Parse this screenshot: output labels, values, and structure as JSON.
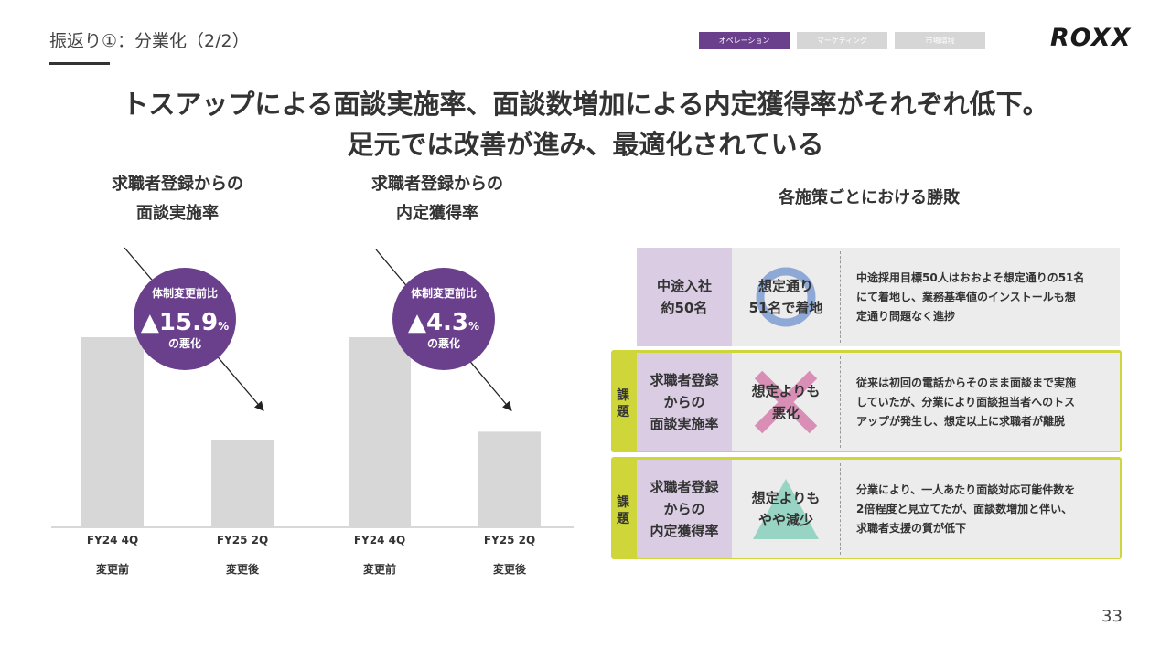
{
  "header": {
    "title": "振返り①：分業化（2/2）",
    "logo": "ROXX",
    "tabs": [
      {
        "label": "オペレーション",
        "active": true
      },
      {
        "label": "マーケティング",
        "active": false
      },
      {
        "label": "市場環境",
        "active": false
      }
    ]
  },
  "headline": {
    "line1": "トスアップによる面談実施率、面談数増加による内定獲得率がそれぞれ低下。",
    "line2": "足元では改善が進み、最適化されている"
  },
  "chart_data": [
    {
      "type": "bar",
      "title_line1": "求職者登録からの",
      "title_line2": "面談実施率",
      "categories": [
        "FY24 4Q",
        "FY25 2Q"
      ],
      "sublabels": [
        "変更前",
        "変更後"
      ],
      "values": [
        100,
        45.9
      ],
      "ylim": [
        0,
        100
      ],
      "badge": {
        "line1": "体制変更前比",
        "value": "▲15.9",
        "unit": "%",
        "line3": "の悪化"
      },
      "bar_color": "#d7d7d7"
    },
    {
      "type": "bar",
      "title_line1": "求職者登録からの",
      "title_line2": "内定獲得率",
      "categories": [
        "FY24 4Q",
        "FY25 2Q"
      ],
      "sublabels": [
        "変更前",
        "変更後"
      ],
      "values": [
        100,
        50.3
      ],
      "ylim": [
        0,
        100
      ],
      "badge": {
        "line1": "体制変更前比",
        "value": "▲4.3",
        "unit": "%",
        "line3": "の悪化"
      },
      "bar_color": "#d7d7d7"
    }
  ],
  "results": {
    "title": "各施策ごとにおける勝敗",
    "kadai_label": "課題",
    "rows": [
      {
        "name_line1": "中途入社",
        "name_line2": "約50名",
        "name_line3": "",
        "result_line1": "想定通り",
        "result_line2": "51名で着地",
        "shape": "circle",
        "desc_line1": "中途採用目標50人はおおよそ想定通りの51名",
        "desc_line2": "にて着地し、業務基準値のインストールも想",
        "desc_line3": "定通り問題なく進捗"
      },
      {
        "name_line1": "求職者登録",
        "name_line2": "からの",
        "name_line3": "面談実施率",
        "result_line1": "想定よりも",
        "result_line2": "悪化",
        "shape": "cross",
        "desc_line1": "従来は初回の電話からそのまま面談まで実施",
        "desc_line2": "していたが、分業により面談担当者へのトス",
        "desc_line3": "アップが発生し、想定以上に求職者が離脱"
      },
      {
        "name_line1": "求職者登録",
        "name_line2": "からの",
        "name_line3": "内定獲得率",
        "result_line1": "想定よりも",
        "result_line2": "やや減少",
        "shape": "triangle",
        "desc_line1": "分業により、一人あたり面談対応可能件数を",
        "desc_line2": "2倍程度と見立てたが、面談数増加と伴い、",
        "desc_line3": "求職者支援の質が低下"
      }
    ],
    "colors": {
      "name_bg": "#d9cce3",
      "row_bg": "#ececec",
      "kadai_border": "#cfd63a",
      "circle": "#8fa9d6",
      "cross": "#d98fb5",
      "triangle": "#97d4c4"
    }
  },
  "page_number": "33",
  "colors": {
    "accent": "#6a3f8c",
    "badge": "#6a3f8c"
  }
}
